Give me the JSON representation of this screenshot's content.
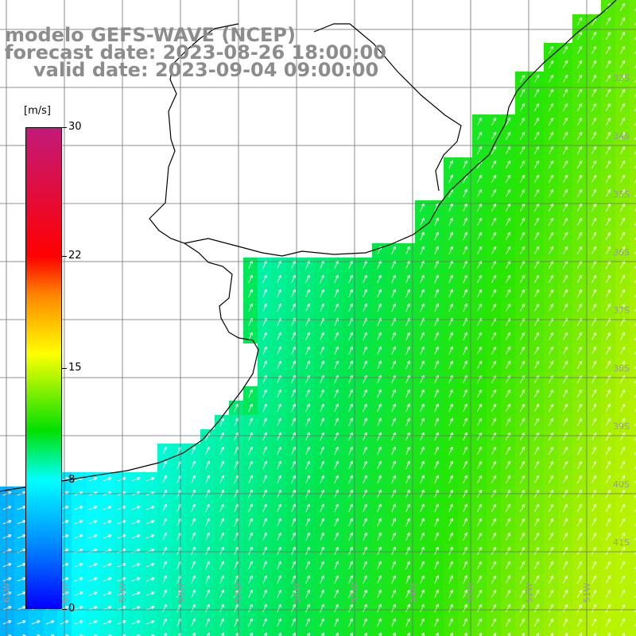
{
  "title": {
    "line1": "modelo GEFS-WAVE (NCEP)",
    "line2": "forecast date: 2023-08-26 18:00:00",
    "line3": "valid date: 2023-09-04 09:00:00"
  },
  "colorbar": {
    "unit": "[m/s]",
    "min": 0,
    "max": 30,
    "ticks": [
      {
        "label": "30",
        "value": 30
      },
      {
        "label": "22",
        "value": 22
      },
      {
        "label": "15",
        "value": 15
      },
      {
        "label": "8",
        "value": 8
      },
      {
        "label": "0",
        "value": 0
      }
    ]
  },
  "map": {
    "lat_labels": [
      "33S",
      "34S",
      "35S",
      "36S",
      "37S",
      "38S",
      "39S",
      "40S",
      "41S"
    ],
    "lon_labels": [
      "61W",
      "60W",
      "59W",
      "58W",
      "57W",
      "56W",
      "55W",
      "54W",
      "53W",
      "52W",
      "51W"
    ],
    "colors": {
      "grid": "#6e6e6e",
      "coast": "#000000",
      "arrow": "#ffffff",
      "land": "#ffffff"
    }
  }
}
